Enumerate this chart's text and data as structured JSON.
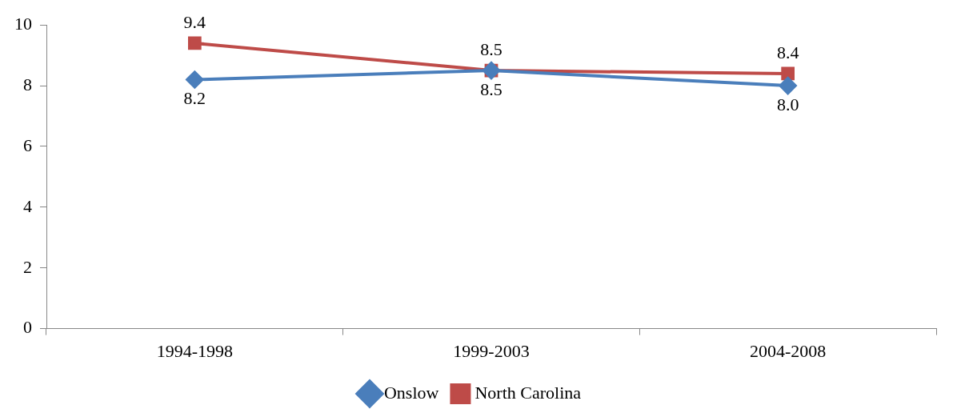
{
  "chart_data": {
    "type": "line",
    "categories": [
      "1994-1998",
      "1999-2003",
      "2004-2008"
    ],
    "series": [
      {
        "name": "Onslow",
        "color": "#4a7ebb",
        "values": [
          8.2,
          8.5,
          8.0
        ],
        "value_labels": [
          "8.2",
          "8.5",
          "8.0"
        ],
        "marker": "diamond"
      },
      {
        "name": "North Carolina",
        "color": "#be4b48",
        "values": [
          9.4,
          8.5,
          8.4
        ],
        "value_labels": [
          "9.4",
          "8.5",
          "8.4"
        ],
        "marker": "square"
      }
    ],
    "ylim": [
      0,
      10
    ],
    "yticks": [
      0,
      2,
      4,
      6,
      8,
      10
    ],
    "grid": false,
    "legend": "bottom",
    "line_style": "solid"
  }
}
